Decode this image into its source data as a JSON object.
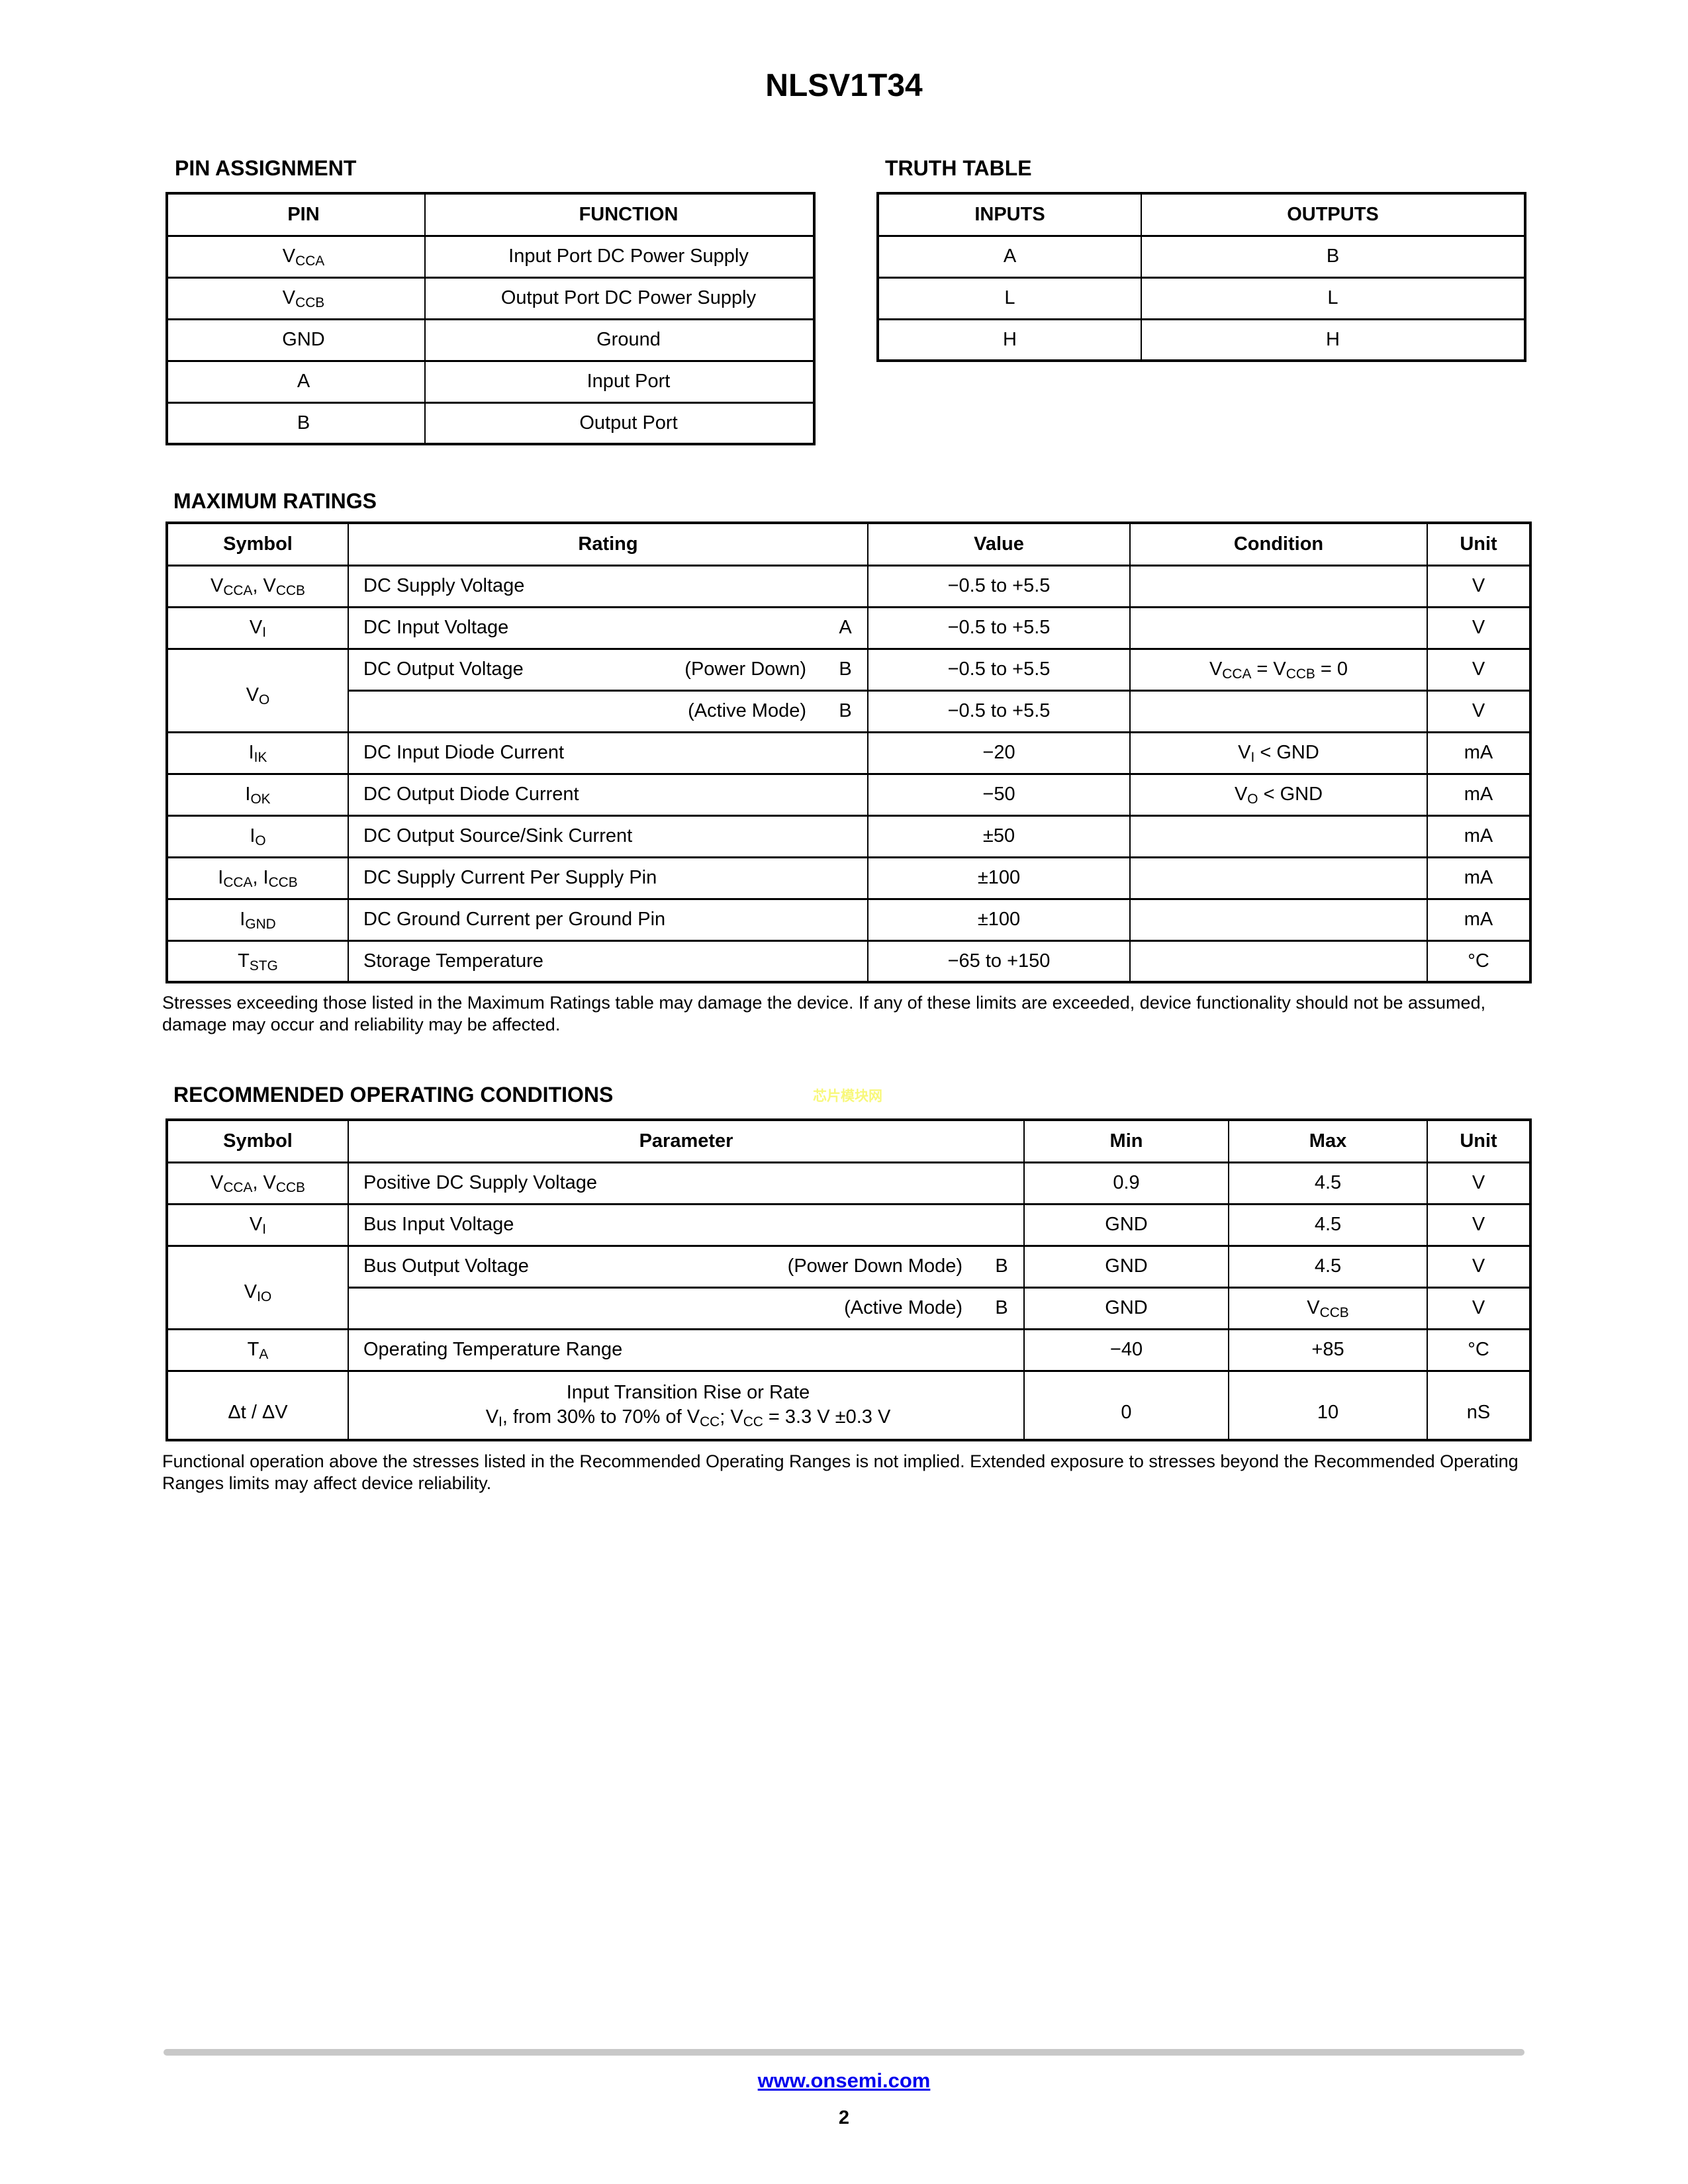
{
  "colors": {
    "link_blue": "#0000ee",
    "watermark_yellow": "#f8f87a",
    "rule_gray": "#c8c8c8"
  },
  "page": {
    "title": "NLSV1T34",
    "watermark": "芯片模块网",
    "footer_link": "www.onsemi.com",
    "page_number": "2"
  },
  "pin_assignment": {
    "heading": "PIN ASSIGNMENT",
    "col_pin": "PIN",
    "col_function": "FUNCTION",
    "rows": [
      {
        "pin": [
          [
            "t",
            "V"
          ],
          [
            "sub",
            "CCA"
          ]
        ],
        "function": "Input Port DC Power Supply"
      },
      {
        "pin": [
          [
            "t",
            "V"
          ],
          [
            "sub",
            "CCB"
          ]
        ],
        "function": "Output Port DC Power Supply"
      },
      {
        "pin": [
          [
            "t",
            "GND"
          ]
        ],
        "function": "Ground"
      },
      {
        "pin": [
          [
            "t",
            "A"
          ]
        ],
        "function": "Input Port"
      },
      {
        "pin": [
          [
            "t",
            "B"
          ]
        ],
        "function": "Output Port"
      }
    ]
  },
  "truth_table": {
    "heading": "TRUTH TABLE",
    "col_inputs": "INPUTS",
    "col_outputs": "OUTPUTS",
    "rows": [
      {
        "input": "A",
        "output": "B"
      },
      {
        "input": "L",
        "output": "L"
      },
      {
        "input": "H",
        "output": "H"
      }
    ]
  },
  "maximum_ratings": {
    "heading": "MAXIMUM RATINGS",
    "columns": {
      "symbol": "Symbol",
      "rating": "Rating",
      "value": "Value",
      "condition": "Condition",
      "unit": "Unit"
    },
    "rows": [
      {
        "symbol": [
          [
            "t",
            "V"
          ],
          [
            "sub",
            "CCA"
          ],
          [
            "t",
            ", V"
          ],
          [
            "sub",
            "CCB"
          ]
        ],
        "rating": "DC Supply Voltage",
        "value": "−0.5 to +5.5",
        "condition": [],
        "unit": "V"
      },
      {
        "symbol": [
          [
            "t",
            "V"
          ],
          [
            "sub",
            "I"
          ]
        ],
        "rating": "DC Input Voltage",
        "tag": "A",
        "value": "−0.5 to +5.5",
        "condition": [],
        "unit": "V"
      },
      {
        "symbol": [
          [
            "t",
            "V"
          ],
          [
            "sub",
            "O"
          ]
        ],
        "rating": "DC Output Voltage",
        "mode": "(Power Down)",
        "tag": "B",
        "value": "−0.5 to +5.5",
        "condition": [
          [
            "t",
            "V"
          ],
          [
            "sub",
            "CCA"
          ],
          [
            "t",
            " = V"
          ],
          [
            "sub",
            "CCB"
          ],
          [
            "t",
            " = 0"
          ]
        ],
        "unit": "V"
      },
      {
        "mode": "(Active Mode)",
        "tag": "B",
        "value": "−0.5 to +5.5",
        "condition": [],
        "unit": "V"
      },
      {
        "symbol": [
          [
            "t",
            "I"
          ],
          [
            "sub",
            "IK"
          ]
        ],
        "rating": "DC Input Diode Current",
        "value": "−20",
        "condition": [
          [
            "t",
            "V"
          ],
          [
            "sub",
            "I"
          ],
          [
            "t",
            " < GND"
          ]
        ],
        "unit": "mA"
      },
      {
        "symbol": [
          [
            "t",
            "I"
          ],
          [
            "sub",
            "OK"
          ]
        ],
        "rating": "DC Output Diode Current",
        "value": "−50",
        "condition": [
          [
            "t",
            "V"
          ],
          [
            "sub",
            "O"
          ],
          [
            "t",
            " < GND"
          ]
        ],
        "unit": "mA"
      },
      {
        "symbol": [
          [
            "t",
            "I"
          ],
          [
            "sub",
            "O"
          ]
        ],
        "rating": "DC Output Source/Sink Current",
        "value": "±50",
        "condition": [],
        "unit": "mA"
      },
      {
        "symbol": [
          [
            "t",
            "I"
          ],
          [
            "sub",
            "CCA"
          ],
          [
            "t",
            ", I"
          ],
          [
            "sub",
            "CCB"
          ]
        ],
        "rating": "DC Supply Current Per Supply Pin",
        "value": "±100",
        "condition": [],
        "unit": "mA"
      },
      {
        "symbol": [
          [
            "t",
            "I"
          ],
          [
            "sub",
            "GND"
          ]
        ],
        "rating": "DC Ground Current per Ground Pin",
        "value": "±100",
        "condition": [],
        "unit": "mA"
      },
      {
        "symbol": [
          [
            "t",
            "T"
          ],
          [
            "sub",
            "STG"
          ]
        ],
        "rating": "Storage Temperature",
        "value": "−65 to +150",
        "condition": [],
        "unit": "°C"
      }
    ],
    "note": "Stresses exceeding those listed in the Maximum Ratings table may damage the device. If any of these limits are exceeded, device functionality should not be assumed, damage may occur and reliability may be affected."
  },
  "recommended_operating_conditions": {
    "heading": "RECOMMENDED OPERATING CONDITIONS",
    "columns": {
      "symbol": "Symbol",
      "parameter": "Parameter",
      "min": "Min",
      "max": "Max",
      "unit": "Unit"
    },
    "rows": [
      {
        "symbol": [
          [
            "t",
            "V"
          ],
          [
            "sub",
            "CCA"
          ],
          [
            "t",
            ", V"
          ],
          [
            "sub",
            "CCB"
          ]
        ],
        "parameter": "Positive DC Supply Voltage",
        "min": "0.9",
        "max": [
          [
            "t",
            "4.5"
          ]
        ],
        "unit": "V"
      },
      {
        "symbol": [
          [
            "t",
            "V"
          ],
          [
            "sub",
            "I"
          ]
        ],
        "parameter": "Bus Input Voltage",
        "min": "GND",
        "max": [
          [
            "t",
            "4.5"
          ]
        ],
        "unit": "V"
      },
      {
        "symbol": [
          [
            "t",
            "V"
          ],
          [
            "sub",
            "IO"
          ]
        ],
        "parameter": "Bus Output Voltage",
        "mode": "(Power Down Mode)",
        "tag": "B",
        "min": "GND",
        "max": [
          [
            "t",
            "4.5"
          ]
        ],
        "unit": "V"
      },
      {
        "mode": "(Active Mode)",
        "tag": "B",
        "min": "GND",
        "max": [
          [
            "t",
            "V"
          ],
          [
            "sub",
            "CCB"
          ]
        ],
        "unit": "V"
      },
      {
        "symbol": [
          [
            "t",
            "T"
          ],
          [
            "sub",
            "A"
          ]
        ],
        "parameter": "Operating Temperature Range",
        "min": "−40",
        "max": [
          [
            "t",
            "+85"
          ]
        ],
        "unit": "°C"
      },
      {
        "symbol": [
          [
            "t",
            "Δt / ΔV"
          ]
        ],
        "parameter": "Input Transition Rise or Rate",
        "parameter2": [
          [
            "t",
            "V"
          ],
          [
            "sub",
            "I"
          ],
          [
            "t",
            ", from 30% to 70% of V"
          ],
          [
            "sub",
            "CC"
          ],
          [
            "t",
            "; V"
          ],
          [
            "sub",
            "CC"
          ],
          [
            "t",
            " = 3.3 V ±0.3 V"
          ]
        ],
        "min": "0",
        "max": [
          [
            "t",
            "10"
          ]
        ],
        "unit": "nS"
      }
    ],
    "note": "Functional operation above the stresses listed in the Recommended Operating Ranges is not implied. Extended exposure to stresses beyond the Recommended Operating Ranges limits may affect device reliability."
  }
}
